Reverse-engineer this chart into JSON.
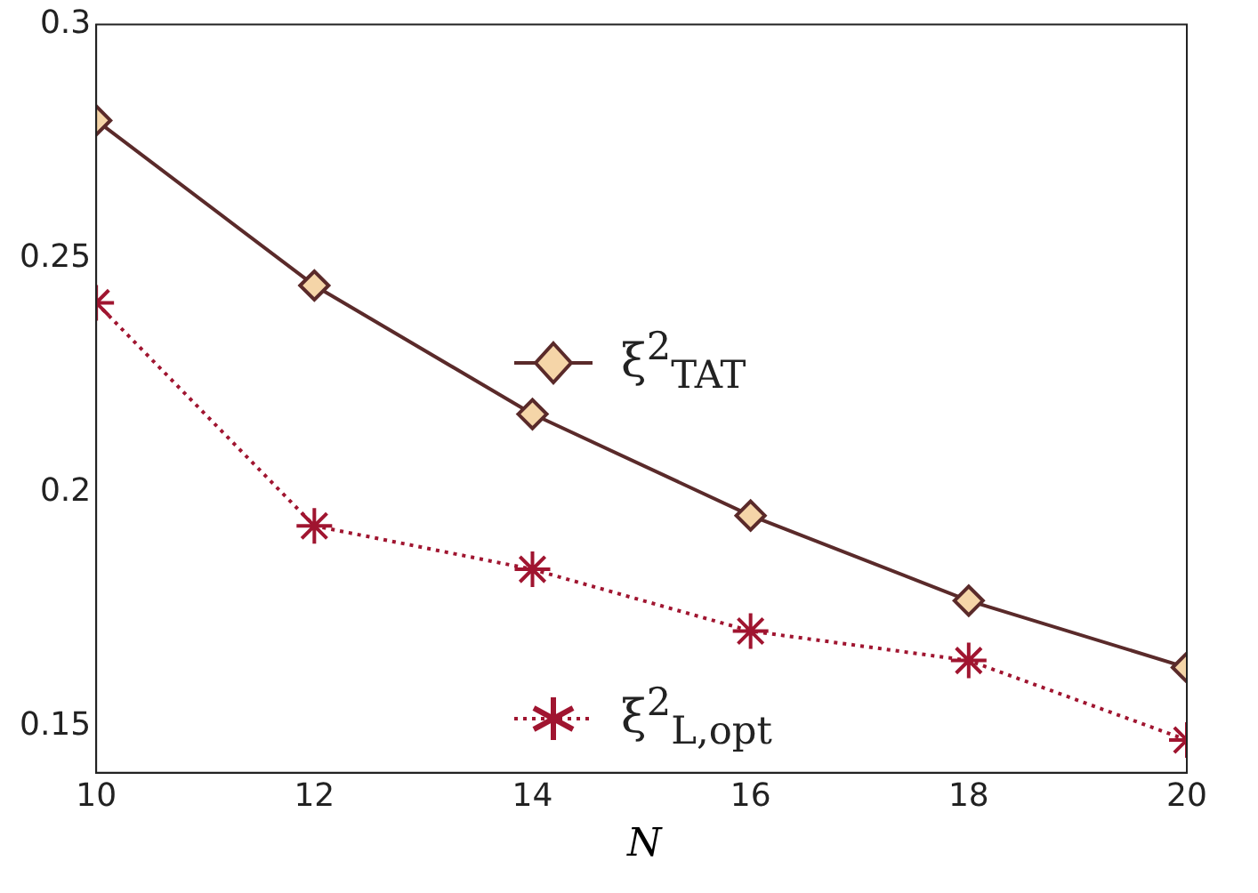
{
  "chart_data": {
    "type": "line",
    "xlabel": "N",
    "x": [
      10,
      12,
      14,
      16,
      18,
      20
    ],
    "series": [
      {
        "name": "ξ$^{2}$$_{TAT}$",
        "color": "#5a2a2a",
        "values": [
          0.2795,
          0.2442,
          0.2167,
          0.195,
          0.1768,
          0.1625
        ],
        "marker": "diamond",
        "line_style": "solid"
      },
      {
        "name": "ξ$^{2}$$_{L,opt}$",
        "color": "#a01530",
        "values": [
          0.2405,
          0.1928,
          0.1835,
          0.1703,
          0.164,
          0.147
        ],
        "marker": "cross",
        "line_style": "dotted"
      }
    ],
    "xlim": [
      10,
      20
    ],
    "xticks": [
      10,
      12,
      14,
      16,
      18,
      20
    ],
    "ylim": [
      0.14,
      0.3
    ],
    "yticks": [
      0.15,
      0.2,
      0.25,
      0.3
    ],
    "grid": false,
    "legend": "center"
  }
}
